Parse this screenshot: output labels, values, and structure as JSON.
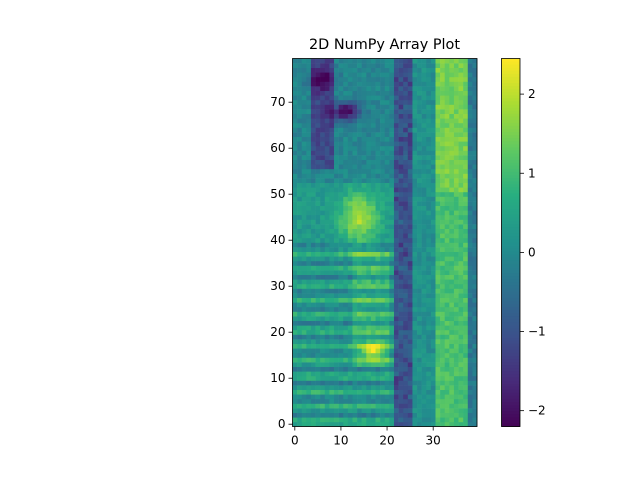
{
  "chart_data": {
    "type": "heatmap",
    "title": "2D NumPy Array Plot",
    "xlabel": "",
    "ylabel": "",
    "colormap": "viridis",
    "shape": [
      80,
      40
    ],
    "xlim": [
      0,
      39
    ],
    "ylim": [
      0,
      79
    ],
    "y_origin": "lower",
    "x_ticks": [
      0,
      10,
      20,
      30
    ],
    "y_ticks": [
      0,
      10,
      20,
      30,
      40,
      50,
      60,
      70
    ],
    "colorbar": {
      "vmin": -2.2,
      "vmax": 2.45,
      "ticks": [
        "2",
        "1",
        "0",
        "−1",
        "−2"
      ],
      "tick_values": [
        2,
        1,
        0,
        -1,
        -2
      ]
    },
    "description_regions": {
      "column_22_26": -1.5,
      "column_27_31": 0.1,
      "column_32_37": 1.3,
      "bright_spots": [
        [
          16,
          16,
          2.2
        ],
        [
          14,
          41,
          2.0
        ],
        [
          14,
          48,
          2.1
        ]
      ],
      "dark_spots": [
        [
          12,
          68,
          -2.0
        ],
        [
          6,
          75,
          -1.4
        ]
      ]
    }
  }
}
